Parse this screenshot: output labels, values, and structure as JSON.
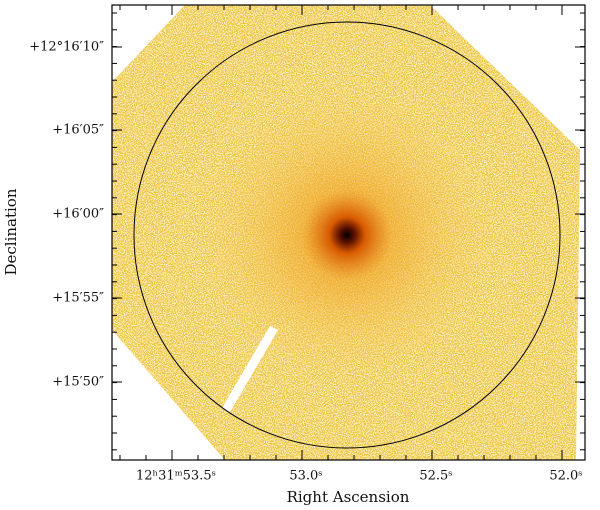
{
  "x_axis": {
    "label": "Right Ascension",
    "ticks": [
      "12ʰ31ᵐ53.5ˢ",
      "53.0ˢ",
      "52.5ˢ",
      "52.0ˢ"
    ]
  },
  "y_axis": {
    "label": "Declination",
    "ticks": [
      "+12°16′10″",
      "+16′05″",
      "+16′00″",
      "+15′55″",
      "+15′50″"
    ]
  }
}
